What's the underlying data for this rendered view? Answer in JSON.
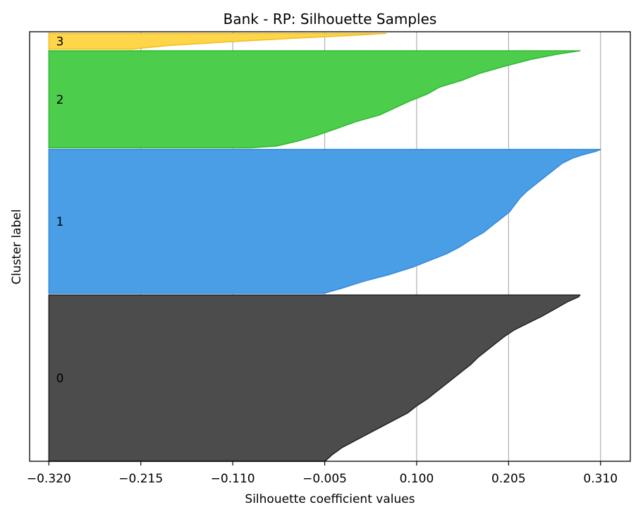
{
  "chart_data": {
    "type": "area",
    "title": "Bank - RP: Silhouette Samples",
    "xlabel": "Silhouette coefficient values",
    "ylabel": "Cluster label",
    "xlim": [
      -0.342,
      0.344
    ],
    "ylim": [
      0,
      248
    ],
    "x_ticks": [
      -0.32,
      -0.215,
      -0.11,
      -0.005,
      0.1,
      0.205,
      0.31
    ],
    "x_tick_labels": [
      "−0.320",
      "−0.215",
      "−0.110",
      "−0.005",
      "0.100",
      "0.205",
      "0.310"
    ],
    "grid": {
      "x": true,
      "y": false
    },
    "baseline": -0.32,
    "series": [
      {
        "label": "0",
        "color": "#4c4c4c",
        "edge_color": "#262626",
        "y_range": [
          0,
          96
        ],
        "profile": [
          [
            0,
            -0.0048
          ],
          [
            4,
            0.004
          ],
          [
            8,
            0.015
          ],
          [
            12,
            0.03
          ],
          [
            16,
            0.045
          ],
          [
            20,
            0.06
          ],
          [
            24,
            0.075
          ],
          [
            28,
            0.09
          ],
          [
            32,
            0.1
          ],
          [
            36,
            0.112
          ],
          [
            40,
            0.122
          ],
          [
            44,
            0.132
          ],
          [
            48,
            0.142
          ],
          [
            52,
            0.152
          ],
          [
            56,
            0.162
          ],
          [
            60,
            0.17
          ],
          [
            64,
            0.18
          ],
          [
            68,
            0.19
          ],
          [
            72,
            0.2
          ],
          [
            76,
            0.212
          ],
          [
            80,
            0.228
          ],
          [
            84,
            0.244
          ],
          [
            88,
            0.258
          ],
          [
            92,
            0.272
          ],
          [
            95,
            0.285
          ],
          [
            96,
            0.2865
          ]
        ]
      },
      {
        "label": "1",
        "color": "#4a9ee6",
        "edge_color": "#3a8ad8",
        "y_range": [
          97,
          180
        ],
        "profile": [
          [
            97,
            -0.006
          ],
          [
            100,
            0.015
          ],
          [
            104,
            0.04
          ],
          [
            108,
            0.07
          ],
          [
            112,
            0.095
          ],
          [
            116,
            0.115
          ],
          [
            120,
            0.135
          ],
          [
            124,
            0.15
          ],
          [
            128,
            0.162
          ],
          [
            132,
            0.176
          ],
          [
            136,
            0.186
          ],
          [
            140,
            0.196
          ],
          [
            144,
            0.206
          ],
          [
            148,
            0.212
          ],
          [
            152,
            0.218
          ],
          [
            156,
            0.226
          ],
          [
            160,
            0.236
          ],
          [
            164,
            0.246
          ],
          [
            168,
            0.256
          ],
          [
            172,
            0.266
          ],
          [
            175,
            0.278
          ],
          [
            177,
            0.29
          ],
          [
            179,
            0.305
          ],
          [
            180,
            0.31
          ]
        ]
      },
      {
        "label": "2",
        "color": "#4cce4c",
        "edge_color": "#32b832",
        "y_range": [
          181,
          237
        ],
        "profile": [
          [
            181,
            -0.09
          ],
          [
            182,
            -0.06
          ],
          [
            185,
            -0.035
          ],
          [
            188,
            -0.015
          ],
          [
            192,
            0.008
          ],
          [
            196,
            0.03
          ],
          [
            200,
            0.058
          ],
          [
            204,
            0.075
          ],
          [
            208,
            0.092
          ],
          [
            212,
            0.112
          ],
          [
            216,
            0.126
          ],
          [
            220,
            0.152
          ],
          [
            224,
            0.172
          ],
          [
            228,
            0.2
          ],
          [
            232,
            0.23
          ],
          [
            235,
            0.26
          ],
          [
            237,
            0.2865
          ]
        ]
      },
      {
        "label": "3",
        "color": "#ffd54a",
        "edge_color": "#f2c020",
        "y_range": [
          238,
          247
        ],
        "profile": [
          [
            238,
            -0.225
          ],
          [
            240,
            -0.185
          ],
          [
            242,
            -0.12
          ],
          [
            244,
            -0.05
          ],
          [
            246,
            0.03
          ],
          [
            247,
            0.065
          ]
        ]
      }
    ]
  }
}
